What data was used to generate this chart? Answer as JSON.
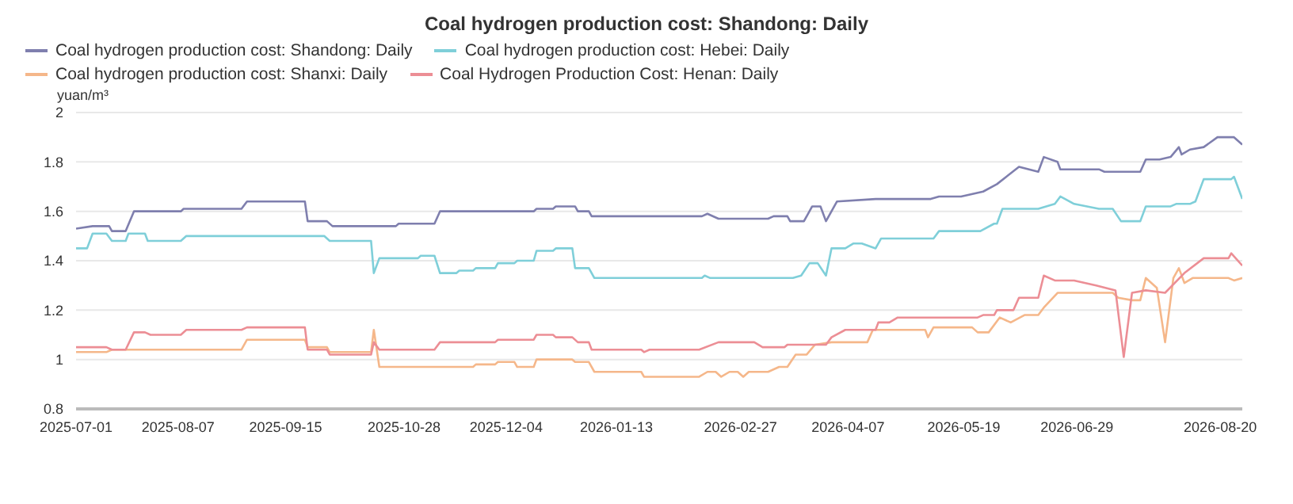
{
  "chart_data": {
    "type": "line",
    "title": "Coal hydrogen production cost: Shandong: Daily",
    "ylabel": "yuan/m³",
    "xlim": [
      "2025-07-01",
      "2026-08-28"
    ],
    "xticks": [
      "2025-07-01",
      "2025-08-07",
      "2025-09-15",
      "2025-10-28",
      "2025-12-04",
      "2026-01-13",
      "2026-02-27",
      "2026-04-07",
      "2026-05-19",
      "2026-06-29",
      "2026-08-20"
    ],
    "ylim": [
      0.8,
      2
    ],
    "yticks": [
      0.8,
      1,
      1.2,
      1.4,
      1.6,
      1.8,
      2
    ],
    "grid": "y",
    "legend": "top left",
    "marker": "none",
    "line_style": "solid",
    "series": [
      {
        "name": "Coal hydrogen production cost: Shandong: Daily",
        "color": "#7f7fae",
        "x": [
          "2025-07-01",
          "2025-07-07",
          "2025-07-13",
          "2025-07-14",
          "2025-07-19",
          "2025-07-22",
          "2025-08-08",
          "2025-08-09",
          "2025-08-30",
          "2025-09-01",
          "2025-09-22",
          "2025-09-23",
          "2025-09-30",
          "2025-10-02",
          "2025-10-25",
          "2025-10-26",
          "2025-11-08",
          "2025-11-10",
          "2025-12-14",
          "2025-12-15",
          "2025-12-21",
          "2025-12-22",
          "2025-12-29",
          "2025-12-30",
          "2026-01-03",
          "2026-01-04",
          "2026-02-13",
          "2026-02-15",
          "2026-02-19",
          "2026-03-09",
          "2026-03-11",
          "2026-03-16",
          "2026-03-17",
          "2026-03-22",
          "2026-03-25",
          "2026-03-28",
          "2026-03-30",
          "2026-04-02",
          "2026-04-03",
          "2026-04-17",
          "2026-05-07",
          "2026-05-10",
          "2026-05-18",
          "2026-05-26",
          "2026-05-31",
          "2026-06-08",
          "2026-06-15",
          "2026-06-17",
          "2026-06-22",
          "2026-06-23",
          "2026-07-07",
          "2026-07-09",
          "2026-07-22",
          "2026-07-24",
          "2026-07-29",
          "2026-08-02",
          "2026-08-05",
          "2026-08-06",
          "2026-08-09",
          "2026-08-14",
          "2026-08-19",
          "2026-08-25",
          "2026-08-28"
        ],
        "values": [
          1.53,
          1.54,
          1.54,
          1.52,
          1.52,
          1.6,
          1.6,
          1.61,
          1.61,
          1.64,
          1.64,
          1.56,
          1.56,
          1.54,
          1.54,
          1.55,
          1.55,
          1.6,
          1.6,
          1.61,
          1.61,
          1.62,
          1.62,
          1.6,
          1.6,
          1.58,
          1.58,
          1.59,
          1.57,
          1.57,
          1.58,
          1.58,
          1.56,
          1.56,
          1.62,
          1.62,
          1.56,
          1.62,
          1.64,
          1.65,
          1.65,
          1.66,
          1.66,
          1.68,
          1.71,
          1.78,
          1.76,
          1.82,
          1.8,
          1.77,
          1.77,
          1.76,
          1.76,
          1.81,
          1.81,
          1.82,
          1.86,
          1.83,
          1.85,
          1.86,
          1.9,
          1.9,
          1.87
        ]
      },
      {
        "name": "Coal hydrogen production cost: Hebei: Daily",
        "color": "#7fcfd9",
        "x": [
          "2025-07-01",
          "2025-07-05",
          "2025-07-07",
          "2025-07-12",
          "2025-07-14",
          "2025-07-19",
          "2025-07-20",
          "2025-07-26",
          "2025-07-27",
          "2025-08-08",
          "2025-08-10",
          "2025-09-29",
          "2025-10-01",
          "2025-10-16",
          "2025-10-17",
          "2025-10-19",
          "2025-11-02",
          "2025-11-03",
          "2025-11-08",
          "2025-11-10",
          "2025-11-16",
          "2025-11-17",
          "2025-11-22",
          "2025-11-23",
          "2025-11-30",
          "2025-12-01",
          "2025-12-07",
          "2025-12-08",
          "2025-12-14",
          "2025-12-15",
          "2025-12-21",
          "2025-12-22",
          "2025-12-28",
          "2025-12-29",
          "2026-01-03",
          "2026-01-05",
          "2026-02-13",
          "2026-02-14",
          "2026-02-16",
          "2026-03-18",
          "2026-03-21",
          "2026-03-24",
          "2026-03-27",
          "2026-03-30",
          "2026-04-01",
          "2026-04-06",
          "2026-04-09",
          "2026-04-12",
          "2026-04-17",
          "2026-04-19",
          "2026-04-21",
          "2026-05-08",
          "2026-05-10",
          "2026-05-25",
          "2026-05-30",
          "2026-05-31",
          "2026-06-02",
          "2026-06-15",
          "2026-06-21",
          "2026-06-23",
          "2026-06-28",
          "2026-07-07",
          "2026-07-12",
          "2026-07-15",
          "2026-07-22",
          "2026-07-24",
          "2026-08-02",
          "2026-08-04",
          "2026-08-09",
          "2026-08-11",
          "2026-08-14",
          "2026-08-24",
          "2026-08-25",
          "2026-08-28"
        ],
        "values": [
          1.45,
          1.45,
          1.51,
          1.51,
          1.48,
          1.48,
          1.51,
          1.51,
          1.48,
          1.48,
          1.5,
          1.5,
          1.48,
          1.48,
          1.35,
          1.41,
          1.41,
          1.42,
          1.42,
          1.35,
          1.35,
          1.36,
          1.36,
          1.37,
          1.37,
          1.39,
          1.39,
          1.4,
          1.4,
          1.44,
          1.44,
          1.45,
          1.45,
          1.37,
          1.37,
          1.33,
          1.33,
          1.34,
          1.33,
          1.33,
          1.34,
          1.39,
          1.39,
          1.34,
          1.45,
          1.45,
          1.47,
          1.47,
          1.45,
          1.49,
          1.49,
          1.49,
          1.52,
          1.52,
          1.55,
          1.55,
          1.61,
          1.61,
          1.63,
          1.66,
          1.63,
          1.61,
          1.61,
          1.56,
          1.56,
          1.62,
          1.62,
          1.63,
          1.63,
          1.64,
          1.73,
          1.73,
          1.74,
          1.65
        ]
      },
      {
        "name": "Coal hydrogen production cost: Shanxi: Daily",
        "color": "#f5b78a",
        "x": [
          "2025-07-01",
          "2025-07-12",
          "2025-07-14",
          "2025-08-30",
          "2025-09-01",
          "2025-09-22",
          "2025-09-23",
          "2025-09-30",
          "2025-10-01",
          "2025-10-16",
          "2025-10-17",
          "2025-10-19",
          "2025-11-22",
          "2025-11-23",
          "2025-11-30",
          "2025-12-01",
          "2025-12-07",
          "2025-12-08",
          "2025-12-14",
          "2025-12-15",
          "2025-12-28",
          "2025-12-29",
          "2026-01-03",
          "2026-01-05",
          "2026-01-22",
          "2026-01-23",
          "2026-02-12",
          "2026-02-15",
          "2026-02-18",
          "2026-02-20",
          "2026-02-23",
          "2026-02-26",
          "2026-02-28",
          "2026-03-02",
          "2026-03-09",
          "2026-03-13",
          "2026-03-16",
          "2026-03-19",
          "2026-03-23",
          "2026-03-26",
          "2026-04-01",
          "2026-04-14",
          "2026-04-16",
          "2026-05-05",
          "2026-05-06",
          "2026-05-08",
          "2026-05-22",
          "2026-05-24",
          "2026-05-28",
          "2026-06-01",
          "2026-06-05",
          "2026-06-10",
          "2026-06-15",
          "2026-06-17",
          "2026-06-22",
          "2026-07-12",
          "2026-07-14",
          "2026-07-19",
          "2026-07-22",
          "2026-07-24",
          "2026-07-28",
          "2026-07-31",
          "2026-08-03",
          "2026-08-05",
          "2026-08-07",
          "2026-08-10",
          "2026-08-23",
          "2026-08-25",
          "2026-08-28"
        ],
        "values": [
          1.03,
          1.03,
          1.04,
          1.04,
          1.08,
          1.08,
          1.05,
          1.05,
          1.03,
          1.03,
          1.12,
          0.97,
          0.97,
          0.98,
          0.98,
          0.99,
          0.99,
          0.97,
          0.97,
          1,
          1,
          0.99,
          0.99,
          0.95,
          0.95,
          0.93,
          0.93,
          0.95,
          0.95,
          0.93,
          0.95,
          0.95,
          0.93,
          0.95,
          0.95,
          0.97,
          0.97,
          1.02,
          1.02,
          1.06,
          1.07,
          1.07,
          1.12,
          1.12,
          1.09,
          1.13,
          1.13,
          1.11,
          1.11,
          1.17,
          1.15,
          1.18,
          1.18,
          1.21,
          1.27,
          1.27,
          1.25,
          1.24,
          1.24,
          1.33,
          1.29,
          1.07,
          1.33,
          1.37,
          1.31,
          1.33,
          1.33,
          1.32,
          1.33
        ]
      },
      {
        "name": "Coal Hydrogen Production Cost: Henan: Daily",
        "color": "#ec8e95",
        "x": [
          "2025-07-01",
          "2025-07-12",
          "2025-07-14",
          "2025-07-19",
          "2025-07-22",
          "2025-07-26",
          "2025-07-28",
          "2025-08-08",
          "2025-08-10",
          "2025-08-30",
          "2025-09-01",
          "2025-09-22",
          "2025-09-23",
          "2025-09-30",
          "2025-10-01",
          "2025-10-16",
          "2025-10-17",
          "2025-10-19",
          "2025-11-08",
          "2025-11-10",
          "2025-11-30",
          "2025-12-01",
          "2025-12-14",
          "2025-12-15",
          "2025-12-21",
          "2025-12-22",
          "2025-12-28",
          "2025-12-30",
          "2026-01-03",
          "2026-01-04",
          "2026-01-22",
          "2026-01-23",
          "2026-01-25",
          "2026-02-12",
          "2026-02-19",
          "2026-03-04",
          "2026-03-07",
          "2026-03-15",
          "2026-03-16",
          "2026-03-30",
          "2026-04-01",
          "2026-04-06",
          "2026-04-17",
          "2026-04-18",
          "2026-04-22",
          "2026-04-25",
          "2026-05-24",
          "2026-05-26",
          "2026-05-30",
          "2026-05-31",
          "2026-06-06",
          "2026-06-08",
          "2026-06-15",
          "2026-06-17",
          "2026-06-21",
          "2026-06-28",
          "2026-07-06",
          "2026-07-13",
          "2026-07-16",
          "2026-07-19",
          "2026-07-24",
          "2026-07-31",
          "2026-08-07",
          "2026-08-14",
          "2026-08-23",
          "2026-08-24",
          "2026-08-28"
        ],
        "values": [
          1.05,
          1.05,
          1.04,
          1.04,
          1.11,
          1.11,
          1.1,
          1.1,
          1.12,
          1.12,
          1.13,
          1.13,
          1.04,
          1.04,
          1.02,
          1.02,
          1.07,
          1.04,
          1.04,
          1.07,
          1.07,
          1.08,
          1.08,
          1.1,
          1.1,
          1.09,
          1.09,
          1.07,
          1.07,
          1.04,
          1.04,
          1.03,
          1.04,
          1.04,
          1.07,
          1.07,
          1.05,
          1.05,
          1.06,
          1.06,
          1.09,
          1.12,
          1.12,
          1.15,
          1.15,
          1.17,
          1.17,
          1.18,
          1.18,
          1.2,
          1.2,
          1.25,
          1.25,
          1.34,
          1.32,
          1.32,
          1.3,
          1.28,
          1.01,
          1.27,
          1.28,
          1.27,
          1.35,
          1.41,
          1.41,
          1.43,
          1.38
        ]
      }
    ]
  }
}
